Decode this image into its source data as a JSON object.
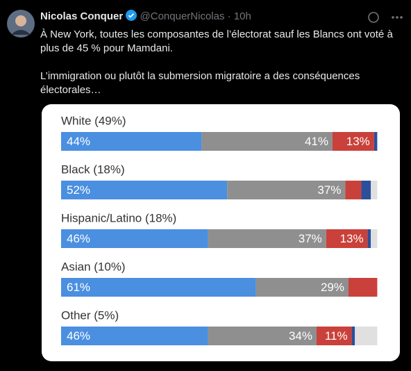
{
  "tweet": {
    "name": "Nicolas Conquer",
    "handle": "@ConquerNicolas",
    "time": "· 10h",
    "text": [
      "À New York, toutes les composantes de l’électorat sauf les Blancs ont voté à plus de 45 % pour Mamdani.",
      "L’immigration ou plutôt la submersion migratoire a des conséquences électorales…"
    ]
  },
  "chart_data": {
    "type": "stacked-bar-horizontal",
    "categories": [
      "White (49%)",
      "Black (18%)",
      "Hispanic/Latino (18%)",
      "Asian (10%)",
      "Other (5%)"
    ],
    "xlim": [
      0,
      100
    ],
    "series": [
      {
        "color": "#4a8fe0",
        "values": [
          44,
          52,
          46,
          61,
          46
        ],
        "value_labels": [
          "44%",
          "52%",
          "46%",
          "61%",
          "46%"
        ]
      },
      {
        "color": "#8f8f8f",
        "values": [
          41,
          37,
          37,
          29,
          34
        ],
        "value_labels": [
          "41%",
          "37%",
          "37%",
          "29%",
          "34%"
        ]
      },
      {
        "color": "#c9413a",
        "values": [
          13,
          5,
          13,
          9,
          11
        ],
        "value_labels": [
          "13%",
          null,
          "13%",
          null,
          "11%"
        ]
      },
      {
        "color": "#2b4f9a",
        "values": [
          1,
          3,
          1,
          0,
          1
        ]
      },
      {
        "color": "#e0e0e0",
        "values": [
          0,
          2,
          2,
          0,
          7
        ]
      }
    ]
  }
}
